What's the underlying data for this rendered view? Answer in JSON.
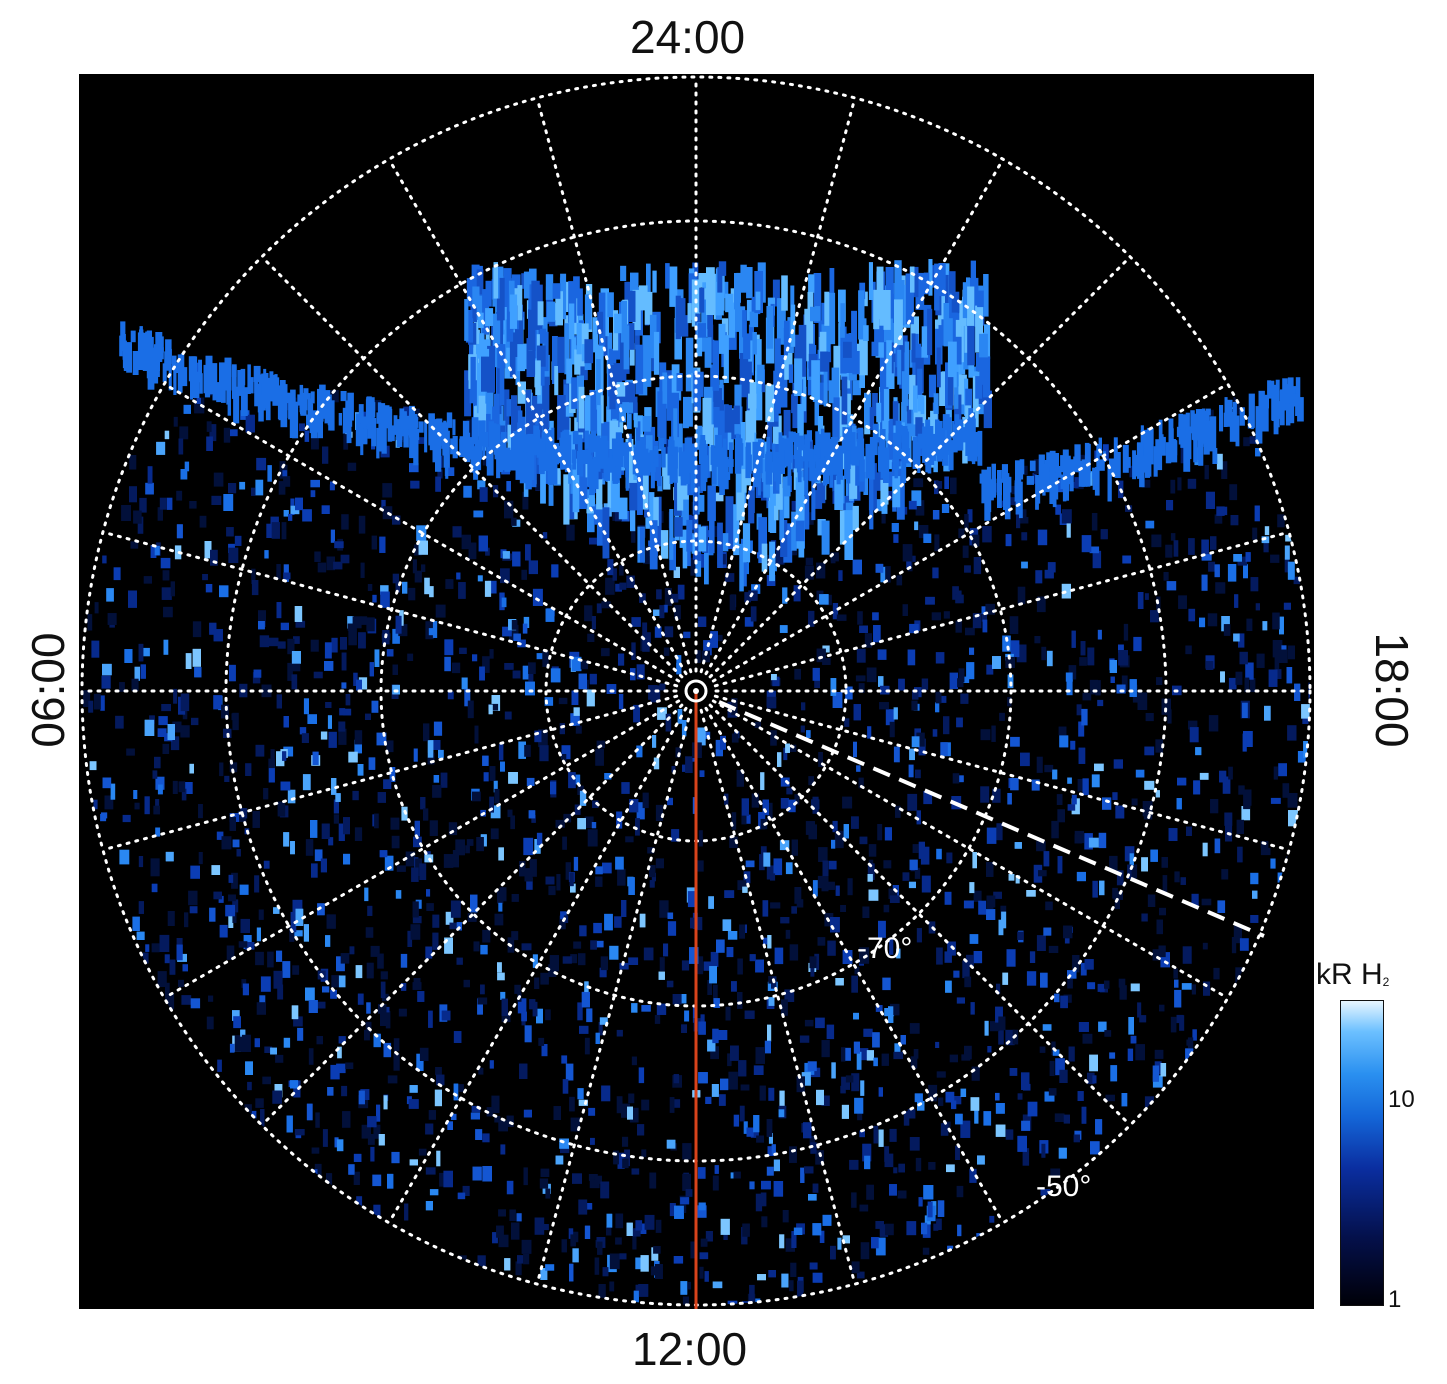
{
  "labels": {
    "top": "24:00",
    "bottom": "12:00",
    "left": "06:00",
    "right": "18:00"
  },
  "grid_labels": {
    "lat70": "-70°",
    "lat50": "-50°"
  },
  "colorbar": {
    "title": "kR H",
    "title_sub": "2",
    "ticks": [
      "10",
      "1"
    ]
  },
  "colors": {
    "background": "#000000",
    "grid": "#ffffff",
    "meridian": "#e0401a",
    "emission": "#1e78e6"
  }
}
